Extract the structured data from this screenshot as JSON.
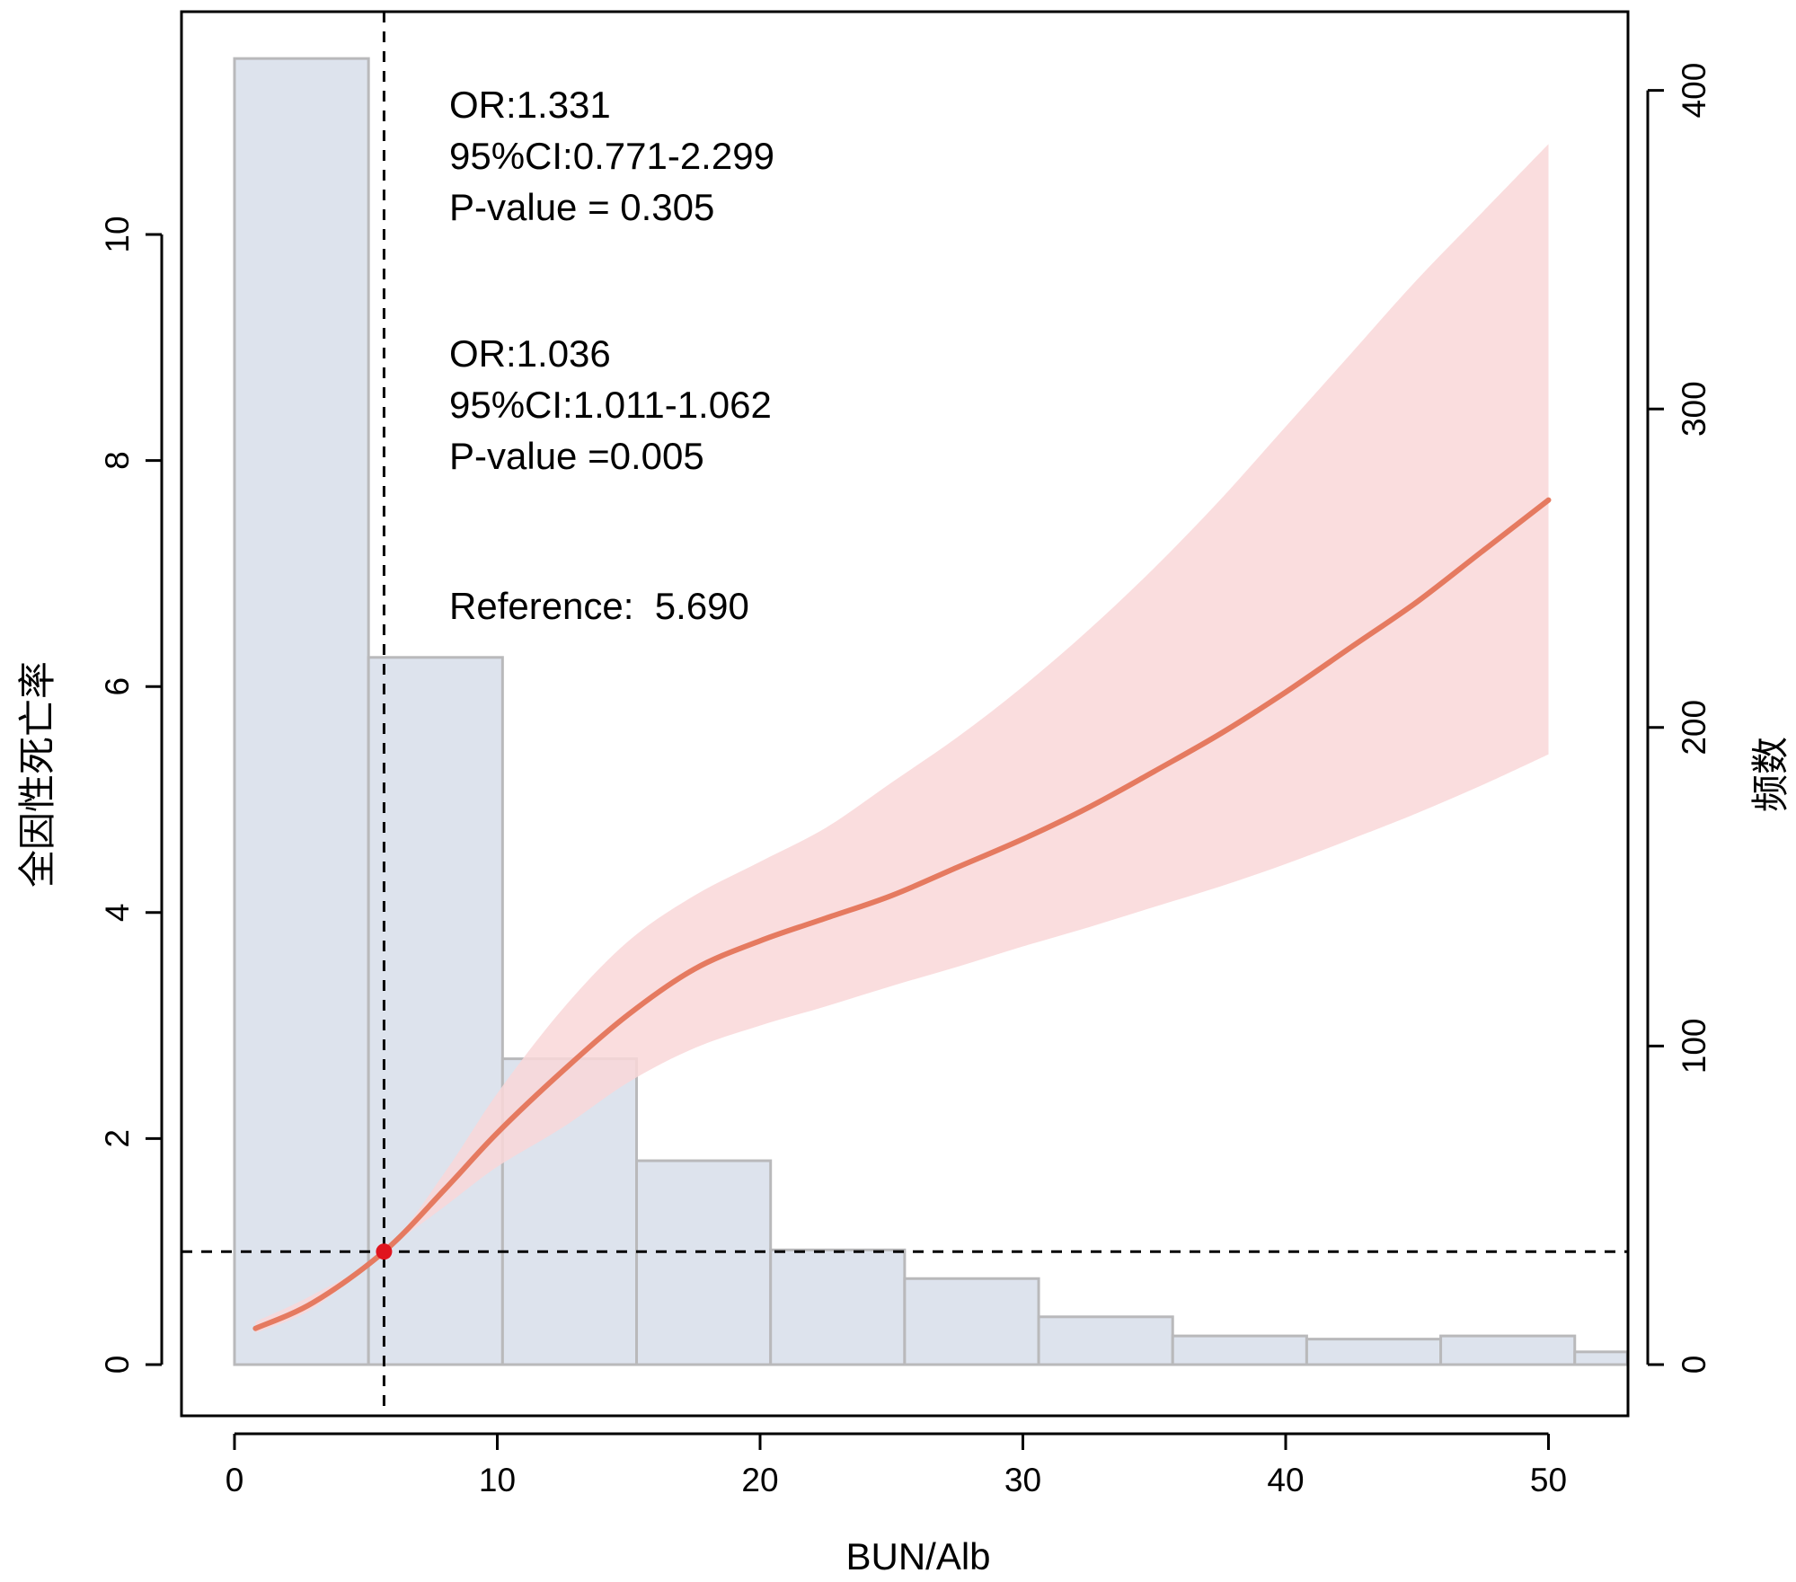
{
  "chart_data": {
    "type": "rcs-histogram",
    "xlabel": "BUN/Alb",
    "ylabel": "全因性死亡率",
    "y2label": "频数",
    "xlim": [
      -2,
      53
    ],
    "ylim": [
      -0.5,
      12
    ],
    "y2lim": [
      -15.6,
      425.6
    ],
    "xticks": [
      0,
      10,
      20,
      30,
      40,
      50
    ],
    "yticks": [
      0,
      2,
      4,
      6,
      8,
      10
    ],
    "y2ticks": [
      0,
      100,
      200,
      300,
      400
    ],
    "histogram": {
      "bin_edges": [
        0,
        5.1,
        10.2,
        15.3,
        20.4,
        25.5,
        30.6,
        35.7,
        40.8,
        45.9,
        51.0,
        53
      ],
      "counts": [
        410,
        222,
        96,
        64,
        36,
        27,
        15,
        9,
        8,
        9,
        4
      ],
      "fill": "#dde3ed",
      "stroke": "#b9b9bb"
    },
    "spline": {
      "x": [
        0.8,
        3,
        5.69,
        8,
        10,
        12.5,
        15,
        17.5,
        20,
        22.5,
        25,
        27.5,
        30,
        32.5,
        35,
        37.5,
        40,
        42.5,
        45,
        47.5,
        50
      ],
      "or": [
        0.32,
        0.55,
        1.0,
        1.55,
        2.05,
        2.6,
        3.1,
        3.5,
        3.75,
        3.95,
        4.15,
        4.4,
        4.65,
        4.93,
        5.25,
        5.58,
        5.95,
        6.35,
        6.75,
        7.2,
        7.65
      ],
      "lower": [
        0.28,
        0.5,
        1.0,
        1.4,
        1.75,
        2.1,
        2.5,
        2.8,
        3.0,
        3.17,
        3.35,
        3.52,
        3.7,
        3.87,
        4.05,
        4.23,
        4.43,
        4.65,
        4.88,
        5.13,
        5.4
      ],
      "upper": [
        0.38,
        0.62,
        1.0,
        1.7,
        2.4,
        3.15,
        3.75,
        4.15,
        4.45,
        4.75,
        5.15,
        5.55,
        6.0,
        6.5,
        7.05,
        7.65,
        8.3,
        8.95,
        9.6,
        10.2,
        10.8
      ],
      "line_color": "#e57a60",
      "band_color": "#f9d7d8"
    },
    "reference": {
      "x": 5.69,
      "y": 1.0,
      "point_color": "#e0141e"
    },
    "annotations": {
      "group1": [
        "OR:1.331",
        "95%CI:0.771-2.299",
        "P-value = 0.305"
      ],
      "group2": [
        "OR:1.036",
        "95%CI:1.011-1.062",
        "P-value =0.005"
      ],
      "reference": "Reference:  5.690"
    }
  }
}
